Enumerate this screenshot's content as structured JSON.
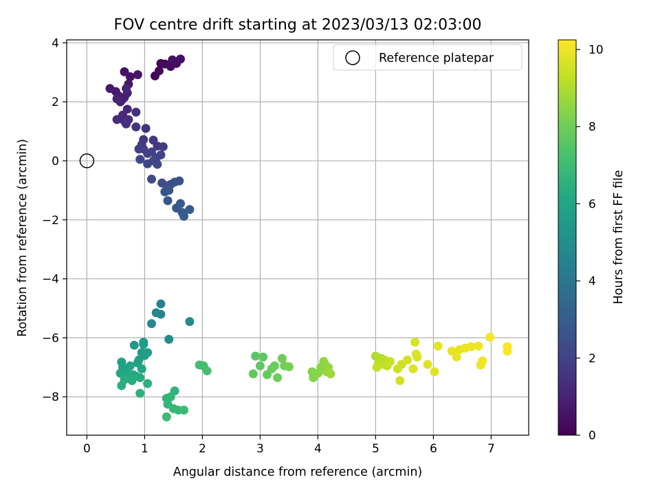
{
  "chart_data": {
    "type": "scatter",
    "title": "FOV centre drift starting at 2023/03/13 02:03:00",
    "xlabel": "Angular distance from reference (arcmin)",
    "ylabel": "Rotation from reference (arcmin)",
    "xlim": [
      -0.35,
      7.65
    ],
    "ylim": [
      -9.3,
      4.1
    ],
    "xticks": [
      0,
      1,
      2,
      3,
      4,
      5,
      6,
      7
    ],
    "yticks": [
      -8,
      -6,
      -4,
      -2,
      0,
      2,
      4
    ],
    "grid": true,
    "legend": {
      "position": "top-right",
      "entries": [
        {
          "label": "Reference platepar",
          "marker": "open-circle"
        }
      ]
    },
    "reference_point": {
      "x": 0,
      "y": 0,
      "label": "Reference platepar"
    },
    "colorbar": {
      "label": "Hours from first FF file",
      "colormap": "viridis",
      "range": [
        0,
        10.25
      ],
      "ticks": [
        0,
        2,
        4,
        6,
        8,
        10
      ]
    },
    "points": [
      {
        "x": 1.18,
        "y": 2.88,
        "c": 0.1
      },
      {
        "x": 1.25,
        "y": 3.05,
        "c": 0.15
      },
      {
        "x": 1.28,
        "y": 3.3,
        "c": 0.2
      },
      {
        "x": 1.35,
        "y": 3.28,
        "c": 0.25
      },
      {
        "x": 1.45,
        "y": 3.2,
        "c": 0.3
      },
      {
        "x": 1.5,
        "y": 3.38,
        "c": 0.35
      },
      {
        "x": 1.55,
        "y": 3.3,
        "c": 0.38
      },
      {
        "x": 1.62,
        "y": 3.45,
        "c": 0.42
      },
      {
        "x": 1.48,
        "y": 3.42,
        "c": 0.45
      },
      {
        "x": 0.65,
        "y": 3.02,
        "c": 0.5
      },
      {
        "x": 0.75,
        "y": 2.85,
        "c": 0.55
      },
      {
        "x": 0.88,
        "y": 2.92,
        "c": 0.6
      },
      {
        "x": 0.72,
        "y": 2.6,
        "c": 0.65
      },
      {
        "x": 0.4,
        "y": 2.45,
        "c": 0.7
      },
      {
        "x": 0.5,
        "y": 2.35,
        "c": 0.75
      },
      {
        "x": 0.55,
        "y": 2.2,
        "c": 0.8
      },
      {
        "x": 0.6,
        "y": 2.05,
        "c": 0.85
      },
      {
        "x": 0.65,
        "y": 2.15,
        "c": 0.9
      },
      {
        "x": 0.7,
        "y": 2.3,
        "c": 0.95
      },
      {
        "x": 0.58,
        "y": 2.0,
        "c": 1.0
      },
      {
        "x": 0.52,
        "y": 2.1,
        "c": 1.05
      },
      {
        "x": 0.68,
        "y": 2.45,
        "c": 1.1
      },
      {
        "x": 0.7,
        "y": 1.75,
        "c": 1.15
      },
      {
        "x": 0.62,
        "y": 1.55,
        "c": 1.2
      },
      {
        "x": 0.52,
        "y": 1.4,
        "c": 1.25
      },
      {
        "x": 0.65,
        "y": 1.35,
        "c": 1.3
      },
      {
        "x": 0.72,
        "y": 1.4,
        "c": 1.35
      },
      {
        "x": 0.68,
        "y": 1.25,
        "c": 1.4
      },
      {
        "x": 0.85,
        "y": 1.65,
        "c": 1.45
      },
      {
        "x": 0.85,
        "y": 1.15,
        "c": 1.5
      },
      {
        "x": 1.02,
        "y": 1.1,
        "c": 1.55
      },
      {
        "x": 0.98,
        "y": 0.72,
        "c": 1.6
      },
      {
        "x": 1.15,
        "y": 0.7,
        "c": 1.65
      },
      {
        "x": 1.22,
        "y": 0.5,
        "c": 1.7
      },
      {
        "x": 1.32,
        "y": 0.48,
        "c": 1.75
      },
      {
        "x": 0.95,
        "y": 0.55,
        "c": 1.8
      },
      {
        "x": 0.9,
        "y": 0.4,
        "c": 1.85
      },
      {
        "x": 0.98,
        "y": 0.4,
        "c": 1.9
      },
      {
        "x": 1.05,
        "y": 0.25,
        "c": 1.95
      },
      {
        "x": 1.12,
        "y": 0.3,
        "c": 2.0
      },
      {
        "x": 1.2,
        "y": 0.1,
        "c": 2.05
      },
      {
        "x": 1.28,
        "y": 0.2,
        "c": 2.1
      },
      {
        "x": 0.92,
        "y": 0.05,
        "c": 2.15
      },
      {
        "x": 1.05,
        "y": -0.1,
        "c": 2.2
      },
      {
        "x": 1.15,
        "y": 0.0,
        "c": 2.25
      },
      {
        "x": 1.22,
        "y": -0.12,
        "c": 2.3
      },
      {
        "x": 1.12,
        "y": -0.62,
        "c": 2.35
      },
      {
        "x": 1.3,
        "y": -0.75,
        "c": 2.4
      },
      {
        "x": 1.38,
        "y": -0.85,
        "c": 2.45
      },
      {
        "x": 1.45,
        "y": -0.8,
        "c": 2.5
      },
      {
        "x": 1.52,
        "y": -0.72,
        "c": 2.55
      },
      {
        "x": 1.6,
        "y": -0.68,
        "c": 2.6
      },
      {
        "x": 1.35,
        "y": -1.05,
        "c": 2.65
      },
      {
        "x": 1.42,
        "y": -1.0,
        "c": 2.7
      },
      {
        "x": 1.4,
        "y": -1.35,
        "c": 2.75
      },
      {
        "x": 1.55,
        "y": -1.6,
        "c": 2.8
      },
      {
        "x": 1.62,
        "y": -1.45,
        "c": 2.85
      },
      {
        "x": 1.65,
        "y": -1.75,
        "c": 2.9
      },
      {
        "x": 1.78,
        "y": -1.65,
        "c": 2.95
      },
      {
        "x": 1.68,
        "y": -1.88,
        "c": 3.0
      },
      {
        "x": 1.28,
        "y": -4.85,
        "c": 4.5
      },
      {
        "x": 1.2,
        "y": -5.15,
        "c": 4.6
      },
      {
        "x": 1.28,
        "y": -5.2,
        "c": 4.7
      },
      {
        "x": 1.12,
        "y": -5.52,
        "c": 4.8
      },
      {
        "x": 1.78,
        "y": -5.45,
        "c": 4.9
      },
      {
        "x": 1.42,
        "y": -6.05,
        "c": 5.0
      },
      {
        "x": 0.98,
        "y": -6.15,
        "c": 5.4
      },
      {
        "x": 0.82,
        "y": -6.25,
        "c": 5.5
      },
      {
        "x": 0.98,
        "y": -6.22,
        "c": 5.6
      },
      {
        "x": 0.95,
        "y": -6.5,
        "c": 5.55
      },
      {
        "x": 1.0,
        "y": -6.6,
        "c": 5.65
      },
      {
        "x": 1.05,
        "y": -6.5,
        "c": 5.7
      },
      {
        "x": 0.9,
        "y": -6.75,
        "c": 5.75
      },
      {
        "x": 0.6,
        "y": -6.82,
        "c": 5.8
      },
      {
        "x": 0.88,
        "y": -6.85,
        "c": 5.85
      },
      {
        "x": 0.62,
        "y": -7.0,
        "c": 5.9
      },
      {
        "x": 0.75,
        "y": -6.95,
        "c": 5.95
      },
      {
        "x": 0.95,
        "y": -7.05,
        "c": 6.0
      },
      {
        "x": 0.7,
        "y": -7.15,
        "c": 6.05
      },
      {
        "x": 0.58,
        "y": -7.2,
        "c": 6.1
      },
      {
        "x": 0.8,
        "y": -7.25,
        "c": 6.15
      },
      {
        "x": 0.85,
        "y": -7.3,
        "c": 6.2
      },
      {
        "x": 0.72,
        "y": -7.35,
        "c": 6.25
      },
      {
        "x": 0.92,
        "y": -7.35,
        "c": 6.3
      },
      {
        "x": 0.78,
        "y": -7.45,
        "c": 6.35
      },
      {
        "x": 0.65,
        "y": -7.42,
        "c": 6.4
      },
      {
        "x": 0.6,
        "y": -7.62,
        "c": 6.45
      },
      {
        "x": 1.05,
        "y": -7.55,
        "c": 6.5
      },
      {
        "x": 0.92,
        "y": -7.88,
        "c": 6.55
      },
      {
        "x": 1.52,
        "y": -7.8,
        "c": 6.6
      },
      {
        "x": 1.38,
        "y": -8.05,
        "c": 6.65
      },
      {
        "x": 1.45,
        "y": -8.0,
        "c": 6.7
      },
      {
        "x": 1.4,
        "y": -8.25,
        "c": 6.75
      },
      {
        "x": 1.5,
        "y": -8.4,
        "c": 6.8
      },
      {
        "x": 1.58,
        "y": -8.45,
        "c": 6.85
      },
      {
        "x": 1.68,
        "y": -8.45,
        "c": 6.9
      },
      {
        "x": 1.38,
        "y": -8.68,
        "c": 6.95
      },
      {
        "x": 1.95,
        "y": -6.92,
        "c": 7.1
      },
      {
        "x": 2.02,
        "y": -6.95,
        "c": 7.15
      },
      {
        "x": 2.08,
        "y": -7.12,
        "c": 7.2
      },
      {
        "x": 2.92,
        "y": -6.62,
        "c": 7.6
      },
      {
        "x": 3.05,
        "y": -6.65,
        "c": 7.65
      },
      {
        "x": 3.0,
        "y": -6.95,
        "c": 7.7
      },
      {
        "x": 2.88,
        "y": -7.22,
        "c": 7.75
      },
      {
        "x": 3.12,
        "y": -7.25,
        "c": 7.8
      },
      {
        "x": 3.2,
        "y": -7.05,
        "c": 7.85
      },
      {
        "x": 3.25,
        "y": -6.95,
        "c": 7.9
      },
      {
        "x": 3.3,
        "y": -7.35,
        "c": 7.95
      },
      {
        "x": 3.38,
        "y": -6.7,
        "c": 8.0
      },
      {
        "x": 3.42,
        "y": -6.95,
        "c": 8.05
      },
      {
        "x": 3.5,
        "y": -6.98,
        "c": 8.1
      },
      {
        "x": 3.9,
        "y": -7.15,
        "c": 8.3
      },
      {
        "x": 3.92,
        "y": -7.35,
        "c": 8.35
      },
      {
        "x": 4.0,
        "y": -7.2,
        "c": 8.4
      },
      {
        "x": 4.05,
        "y": -7.0,
        "c": 8.45
      },
      {
        "x": 4.1,
        "y": -6.8,
        "c": 8.5
      },
      {
        "x": 4.12,
        "y": -6.9,
        "c": 8.55
      },
      {
        "x": 4.18,
        "y": -7.0,
        "c": 8.6
      },
      {
        "x": 4.15,
        "y": -7.15,
        "c": 8.65
      },
      {
        "x": 4.22,
        "y": -7.22,
        "c": 8.7
      },
      {
        "x": 5.0,
        "y": -6.62,
        "c": 9.0
      },
      {
        "x": 5.05,
        "y": -6.68,
        "c": 9.05
      },
      {
        "x": 5.1,
        "y": -6.7,
        "c": 9.1
      },
      {
        "x": 5.15,
        "y": -6.75,
        "c": 9.15
      },
      {
        "x": 5.05,
        "y": -6.85,
        "c": 9.2
      },
      {
        "x": 5.12,
        "y": -6.9,
        "c": 9.25
      },
      {
        "x": 5.2,
        "y": -6.95,
        "c": 9.3
      },
      {
        "x": 5.02,
        "y": -7.0,
        "c": 9.35
      },
      {
        "x": 5.25,
        "y": -6.8,
        "c": 9.4
      },
      {
        "x": 5.38,
        "y": -7.05,
        "c": 9.45
      },
      {
        "x": 5.45,
        "y": -6.9,
        "c": 9.5
      },
      {
        "x": 5.55,
        "y": -6.75,
        "c": 9.55
      },
      {
        "x": 5.42,
        "y": -7.45,
        "c": 9.6
      },
      {
        "x": 5.68,
        "y": -6.15,
        "c": 9.65
      },
      {
        "x": 5.7,
        "y": -6.55,
        "c": 9.7
      },
      {
        "x": 5.72,
        "y": -6.65,
        "c": 9.72
      },
      {
        "x": 5.65,
        "y": -7.05,
        "c": 9.75
      },
      {
        "x": 5.9,
        "y": -6.9,
        "c": 9.78
      },
      {
        "x": 6.02,
        "y": -7.15,
        "c": 9.8
      },
      {
        "x": 6.08,
        "y": -6.28,
        "c": 9.85
      },
      {
        "x": 6.32,
        "y": -6.45,
        "c": 9.88
      },
      {
        "x": 6.4,
        "y": -6.65,
        "c": 9.9
      },
      {
        "x": 6.45,
        "y": -6.4,
        "c": 9.92
      },
      {
        "x": 6.55,
        "y": -6.35,
        "c": 9.95
      },
      {
        "x": 6.65,
        "y": -6.3,
        "c": 9.97
      },
      {
        "x": 6.78,
        "y": -6.28,
        "c": 10.0
      },
      {
        "x": 6.82,
        "y": -6.92,
        "c": 10.02
      },
      {
        "x": 6.85,
        "y": -6.78,
        "c": 10.05
      },
      {
        "x": 6.98,
        "y": -5.98,
        "c": 10.1
      },
      {
        "x": 7.28,
        "y": -6.3,
        "c": 10.15
      },
      {
        "x": 7.28,
        "y": -6.45,
        "c": 10.2
      }
    ]
  }
}
